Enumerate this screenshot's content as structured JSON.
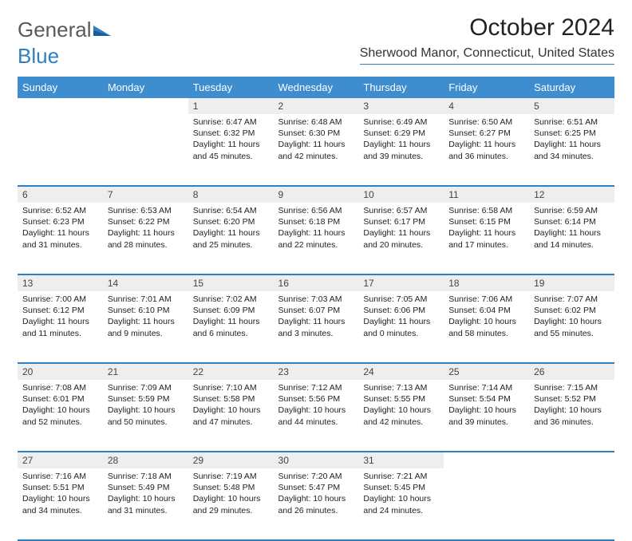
{
  "logo": {
    "word1": "General",
    "word2": "Blue"
  },
  "title": "October 2024",
  "location": "Sherwood Manor, Connecticut, United States",
  "colors": {
    "header_bg": "#3e8ecf",
    "header_text": "#ffffff",
    "rule": "#2f7fc1",
    "daynum_bg": "#eeeeee",
    "text": "#222222",
    "logo_gray": "#5a5a5a",
    "logo_blue": "#2f7fc1"
  },
  "fonts": {
    "title_size_pt": 22,
    "location_size_pt": 12,
    "header_size_pt": 10,
    "daynum_size_pt": 9,
    "body_size_pt": 8
  },
  "day_headers": [
    "Sunday",
    "Monday",
    "Tuesday",
    "Wednesday",
    "Thursday",
    "Friday",
    "Saturday"
  ],
  "weeks": [
    [
      null,
      null,
      {
        "num": "1",
        "sunrise": "Sunrise: 6:47 AM",
        "sunset": "Sunset: 6:32 PM",
        "daylight": "Daylight: 11 hours and 45 minutes."
      },
      {
        "num": "2",
        "sunrise": "Sunrise: 6:48 AM",
        "sunset": "Sunset: 6:30 PM",
        "daylight": "Daylight: 11 hours and 42 minutes."
      },
      {
        "num": "3",
        "sunrise": "Sunrise: 6:49 AM",
        "sunset": "Sunset: 6:29 PM",
        "daylight": "Daylight: 11 hours and 39 minutes."
      },
      {
        "num": "4",
        "sunrise": "Sunrise: 6:50 AM",
        "sunset": "Sunset: 6:27 PM",
        "daylight": "Daylight: 11 hours and 36 minutes."
      },
      {
        "num": "5",
        "sunrise": "Sunrise: 6:51 AM",
        "sunset": "Sunset: 6:25 PM",
        "daylight": "Daylight: 11 hours and 34 minutes."
      }
    ],
    [
      {
        "num": "6",
        "sunrise": "Sunrise: 6:52 AM",
        "sunset": "Sunset: 6:23 PM",
        "daylight": "Daylight: 11 hours and 31 minutes."
      },
      {
        "num": "7",
        "sunrise": "Sunrise: 6:53 AM",
        "sunset": "Sunset: 6:22 PM",
        "daylight": "Daylight: 11 hours and 28 minutes."
      },
      {
        "num": "8",
        "sunrise": "Sunrise: 6:54 AM",
        "sunset": "Sunset: 6:20 PM",
        "daylight": "Daylight: 11 hours and 25 minutes."
      },
      {
        "num": "9",
        "sunrise": "Sunrise: 6:56 AM",
        "sunset": "Sunset: 6:18 PM",
        "daylight": "Daylight: 11 hours and 22 minutes."
      },
      {
        "num": "10",
        "sunrise": "Sunrise: 6:57 AM",
        "sunset": "Sunset: 6:17 PM",
        "daylight": "Daylight: 11 hours and 20 minutes."
      },
      {
        "num": "11",
        "sunrise": "Sunrise: 6:58 AM",
        "sunset": "Sunset: 6:15 PM",
        "daylight": "Daylight: 11 hours and 17 minutes."
      },
      {
        "num": "12",
        "sunrise": "Sunrise: 6:59 AM",
        "sunset": "Sunset: 6:14 PM",
        "daylight": "Daylight: 11 hours and 14 minutes."
      }
    ],
    [
      {
        "num": "13",
        "sunrise": "Sunrise: 7:00 AM",
        "sunset": "Sunset: 6:12 PM",
        "daylight": "Daylight: 11 hours and 11 minutes."
      },
      {
        "num": "14",
        "sunrise": "Sunrise: 7:01 AM",
        "sunset": "Sunset: 6:10 PM",
        "daylight": "Daylight: 11 hours and 9 minutes."
      },
      {
        "num": "15",
        "sunrise": "Sunrise: 7:02 AM",
        "sunset": "Sunset: 6:09 PM",
        "daylight": "Daylight: 11 hours and 6 minutes."
      },
      {
        "num": "16",
        "sunrise": "Sunrise: 7:03 AM",
        "sunset": "Sunset: 6:07 PM",
        "daylight": "Daylight: 11 hours and 3 minutes."
      },
      {
        "num": "17",
        "sunrise": "Sunrise: 7:05 AM",
        "sunset": "Sunset: 6:06 PM",
        "daylight": "Daylight: 11 hours and 0 minutes."
      },
      {
        "num": "18",
        "sunrise": "Sunrise: 7:06 AM",
        "sunset": "Sunset: 6:04 PM",
        "daylight": "Daylight: 10 hours and 58 minutes."
      },
      {
        "num": "19",
        "sunrise": "Sunrise: 7:07 AM",
        "sunset": "Sunset: 6:02 PM",
        "daylight": "Daylight: 10 hours and 55 minutes."
      }
    ],
    [
      {
        "num": "20",
        "sunrise": "Sunrise: 7:08 AM",
        "sunset": "Sunset: 6:01 PM",
        "daylight": "Daylight: 10 hours and 52 minutes."
      },
      {
        "num": "21",
        "sunrise": "Sunrise: 7:09 AM",
        "sunset": "Sunset: 5:59 PM",
        "daylight": "Daylight: 10 hours and 50 minutes."
      },
      {
        "num": "22",
        "sunrise": "Sunrise: 7:10 AM",
        "sunset": "Sunset: 5:58 PM",
        "daylight": "Daylight: 10 hours and 47 minutes."
      },
      {
        "num": "23",
        "sunrise": "Sunrise: 7:12 AM",
        "sunset": "Sunset: 5:56 PM",
        "daylight": "Daylight: 10 hours and 44 minutes."
      },
      {
        "num": "24",
        "sunrise": "Sunrise: 7:13 AM",
        "sunset": "Sunset: 5:55 PM",
        "daylight": "Daylight: 10 hours and 42 minutes."
      },
      {
        "num": "25",
        "sunrise": "Sunrise: 7:14 AM",
        "sunset": "Sunset: 5:54 PM",
        "daylight": "Daylight: 10 hours and 39 minutes."
      },
      {
        "num": "26",
        "sunrise": "Sunrise: 7:15 AM",
        "sunset": "Sunset: 5:52 PM",
        "daylight": "Daylight: 10 hours and 36 minutes."
      }
    ],
    [
      {
        "num": "27",
        "sunrise": "Sunrise: 7:16 AM",
        "sunset": "Sunset: 5:51 PM",
        "daylight": "Daylight: 10 hours and 34 minutes."
      },
      {
        "num": "28",
        "sunrise": "Sunrise: 7:18 AM",
        "sunset": "Sunset: 5:49 PM",
        "daylight": "Daylight: 10 hours and 31 minutes."
      },
      {
        "num": "29",
        "sunrise": "Sunrise: 7:19 AM",
        "sunset": "Sunset: 5:48 PM",
        "daylight": "Daylight: 10 hours and 29 minutes."
      },
      {
        "num": "30",
        "sunrise": "Sunrise: 7:20 AM",
        "sunset": "Sunset: 5:47 PM",
        "daylight": "Daylight: 10 hours and 26 minutes."
      },
      {
        "num": "31",
        "sunrise": "Sunrise: 7:21 AM",
        "sunset": "Sunset: 5:45 PM",
        "daylight": "Daylight: 10 hours and 24 minutes."
      },
      null,
      null
    ]
  ]
}
